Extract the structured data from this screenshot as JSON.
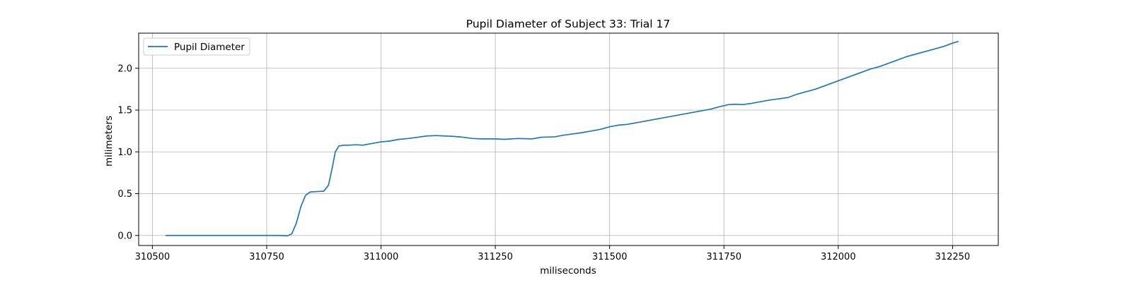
{
  "chart_data": {
    "type": "line",
    "title": "Pupil Diameter of Subject 33: Trial 17",
    "xlabel": "miliseconds",
    "ylabel": "milimeters",
    "xlim": [
      310470,
      312350
    ],
    "ylim": [
      -0.12,
      2.42
    ],
    "xticks": [
      310500,
      310750,
      311000,
      311250,
      311500,
      311750,
      312000,
      312250
    ],
    "yticks": [
      0.0,
      0.5,
      1.0,
      1.5,
      2.0
    ],
    "ytick_labels": [
      "0.0",
      "0.5",
      "1.0",
      "1.5",
      "2.0"
    ],
    "grid": true,
    "legend_position": "top-left",
    "series": [
      {
        "name": "Pupil Diameter",
        "color": "#1f77b4",
        "points": [
          [
            310530,
            0.0
          ],
          [
            310600,
            0.0
          ],
          [
            310650,
            0.0
          ],
          [
            310700,
            0.0
          ],
          [
            310750,
            0.0
          ],
          [
            310780,
            0.0
          ],
          [
            310795,
            -0.005
          ],
          [
            310805,
            0.02
          ],
          [
            310815,
            0.15
          ],
          [
            310825,
            0.35
          ],
          [
            310835,
            0.48
          ],
          [
            310845,
            0.52
          ],
          [
            310860,
            0.525
          ],
          [
            310875,
            0.53
          ],
          [
            310885,
            0.6
          ],
          [
            310893,
            0.8
          ],
          [
            310900,
            1.0
          ],
          [
            310908,
            1.07
          ],
          [
            310918,
            1.08
          ],
          [
            310930,
            1.08
          ],
          [
            310945,
            1.085
          ],
          [
            310960,
            1.08
          ],
          [
            310980,
            1.1
          ],
          [
            311000,
            1.12
          ],
          [
            311020,
            1.13
          ],
          [
            311040,
            1.15
          ],
          [
            311060,
            1.16
          ],
          [
            311080,
            1.175
          ],
          [
            311100,
            1.19
          ],
          [
            311120,
            1.195
          ],
          [
            311140,
            1.19
          ],
          [
            311160,
            1.185
          ],
          [
            311180,
            1.175
          ],
          [
            311200,
            1.16
          ],
          [
            311220,
            1.155
          ],
          [
            311250,
            1.155
          ],
          [
            311270,
            1.15
          ],
          [
            311300,
            1.16
          ],
          [
            311330,
            1.155
          ],
          [
            311350,
            1.175
          ],
          [
            311380,
            1.18
          ],
          [
            311400,
            1.2
          ],
          [
            311420,
            1.215
          ],
          [
            311440,
            1.23
          ],
          [
            311460,
            1.25
          ],
          [
            311480,
            1.27
          ],
          [
            311500,
            1.3
          ],
          [
            311520,
            1.32
          ],
          [
            311540,
            1.33
          ],
          [
            311560,
            1.35
          ],
          [
            311580,
            1.37
          ],
          [
            311600,
            1.39
          ],
          [
            311620,
            1.41
          ],
          [
            311640,
            1.43
          ],
          [
            311660,
            1.45
          ],
          [
            311680,
            1.47
          ],
          [
            311700,
            1.49
          ],
          [
            311720,
            1.51
          ],
          [
            311740,
            1.54
          ],
          [
            311760,
            1.565
          ],
          [
            311775,
            1.57
          ],
          [
            311790,
            1.565
          ],
          [
            311810,
            1.58
          ],
          [
            311830,
            1.6
          ],
          [
            311850,
            1.62
          ],
          [
            311870,
            1.635
          ],
          [
            311890,
            1.65
          ],
          [
            311910,
            1.69
          ],
          [
            311930,
            1.72
          ],
          [
            311950,
            1.75
          ],
          [
            311970,
            1.79
          ],
          [
            311990,
            1.83
          ],
          [
            312010,
            1.87
          ],
          [
            312030,
            1.91
          ],
          [
            312050,
            1.95
          ],
          [
            312070,
            1.99
          ],
          [
            312090,
            2.02
          ],
          [
            312110,
            2.06
          ],
          [
            312130,
            2.1
          ],
          [
            312150,
            2.14
          ],
          [
            312170,
            2.17
          ],
          [
            312190,
            2.2
          ],
          [
            312210,
            2.23
          ],
          [
            312230,
            2.26
          ],
          [
            312250,
            2.3
          ],
          [
            312262,
            2.32
          ]
        ]
      }
    ]
  }
}
